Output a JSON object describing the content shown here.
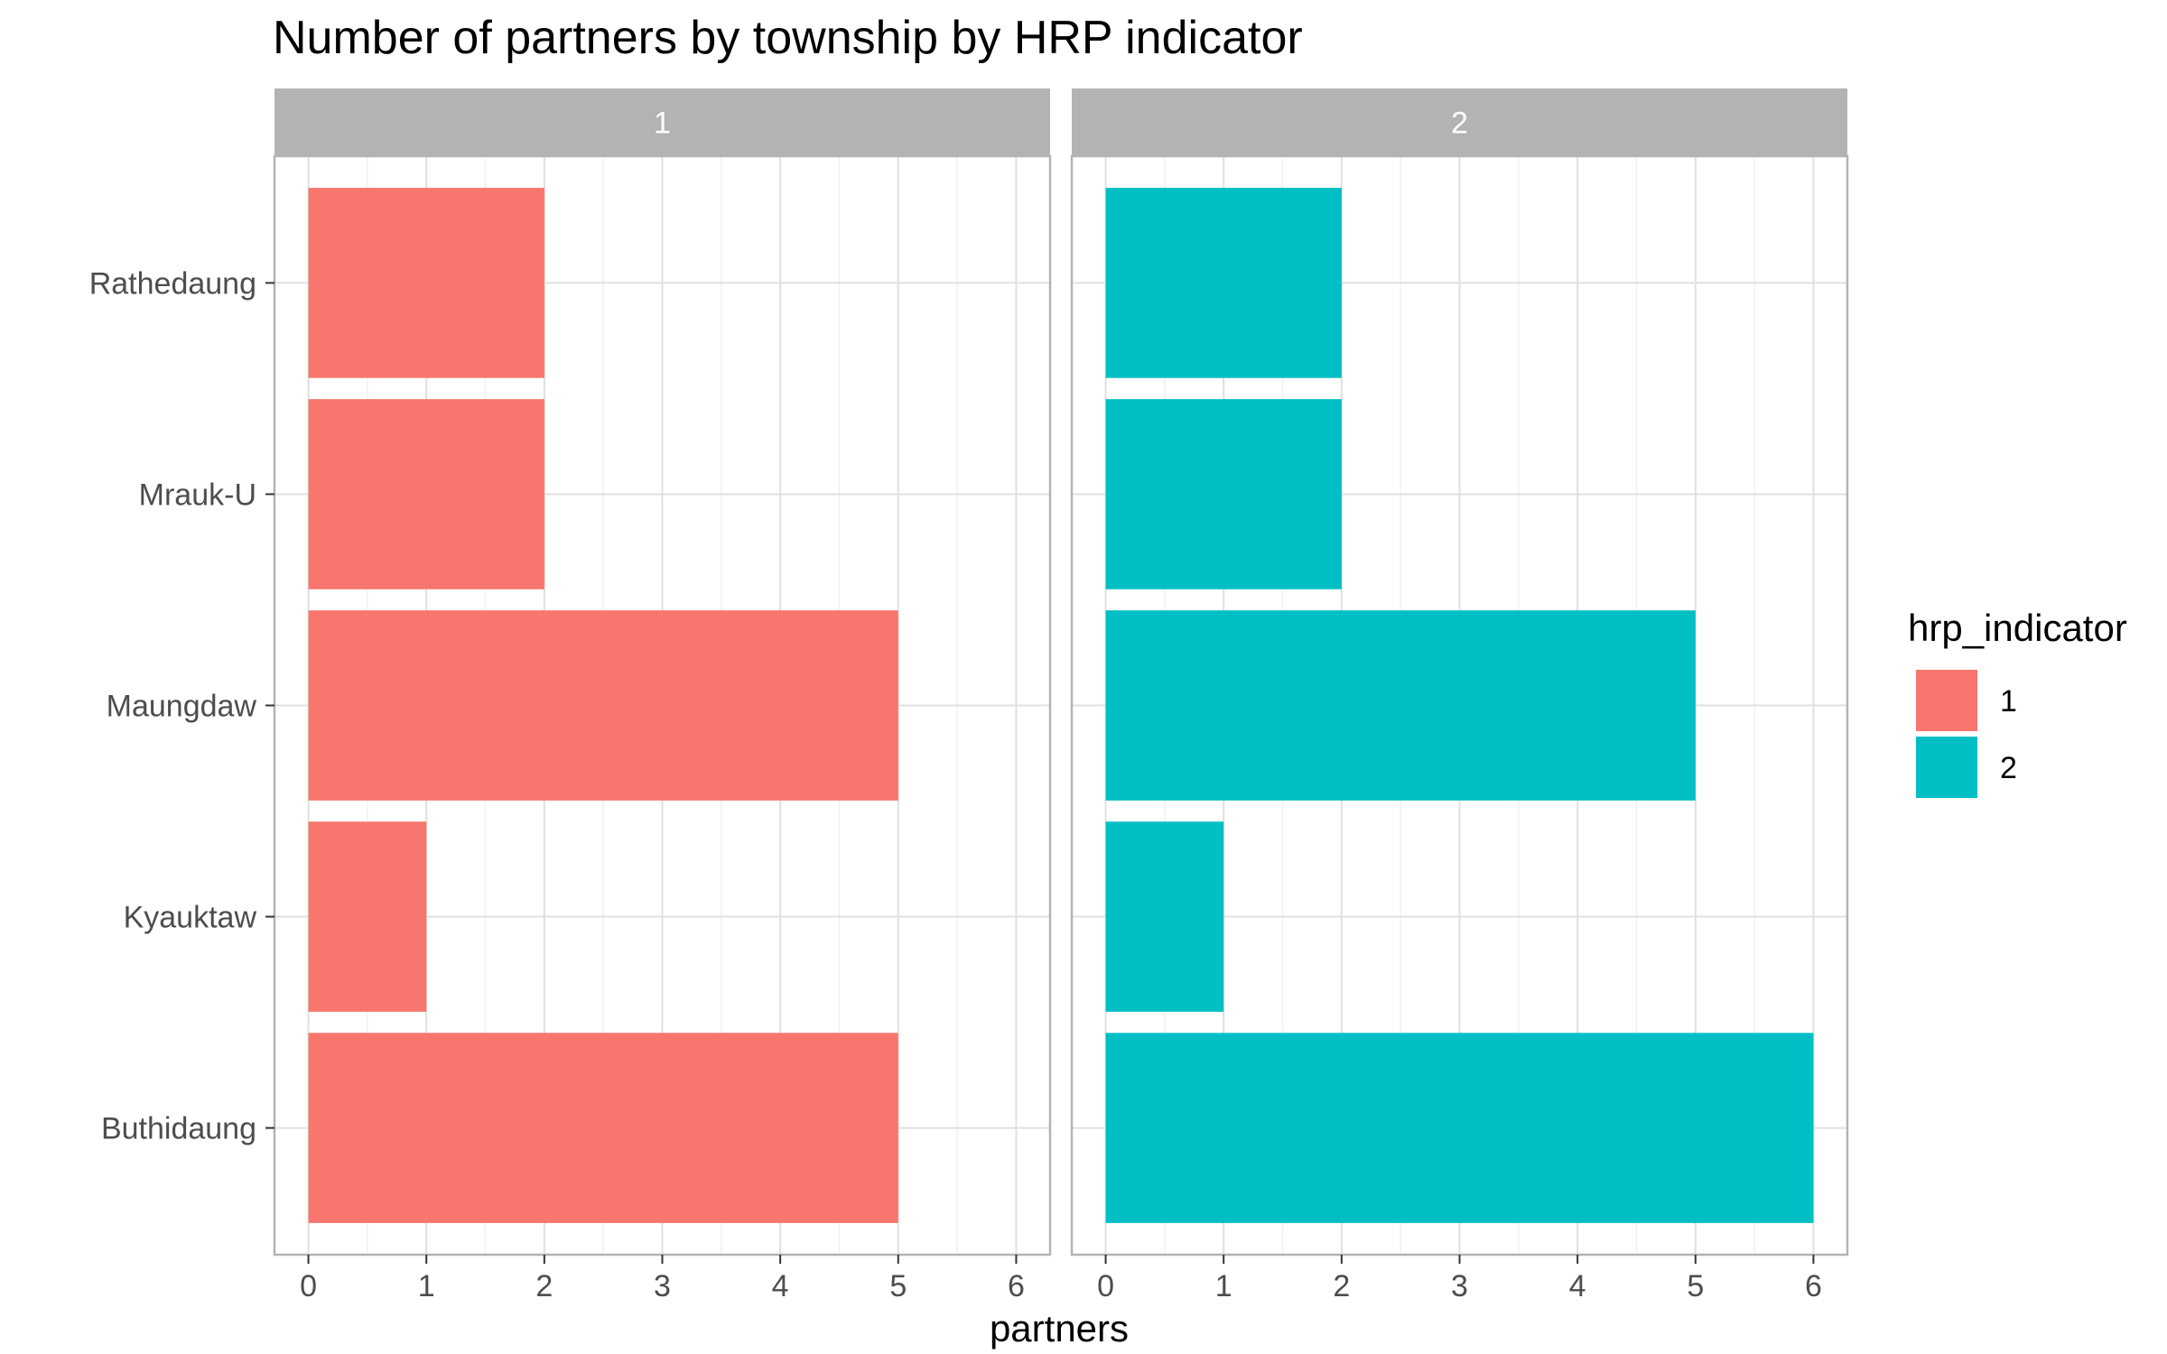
{
  "chart_data": {
    "type": "bar",
    "orientation": "horizontal",
    "title": "Number of partners by township by HRP indicator",
    "xlabel": "partners",
    "ylabel": "",
    "xlim": [
      0,
      6
    ],
    "x_ticks": [
      "0",
      "1",
      "2",
      "3",
      "4",
      "5",
      "6"
    ],
    "grid": true,
    "categories": [
      "Rathedaung",
      "Mrauk-U",
      "Maungdaw",
      "Kyauktaw",
      "Buthidaung"
    ],
    "facets": [
      {
        "label": "1",
        "series": "1",
        "values": [
          2,
          2,
          5,
          1,
          5
        ]
      },
      {
        "label": "2",
        "series": "2",
        "values": [
          2,
          2,
          5,
          1,
          6
        ]
      }
    ],
    "legend": {
      "title": "hrp_indicator",
      "placement": "right",
      "items": [
        {
          "label": "1",
          "color": "#F8766D"
        },
        {
          "label": "2",
          "color": "#00BFC4"
        }
      ]
    }
  }
}
